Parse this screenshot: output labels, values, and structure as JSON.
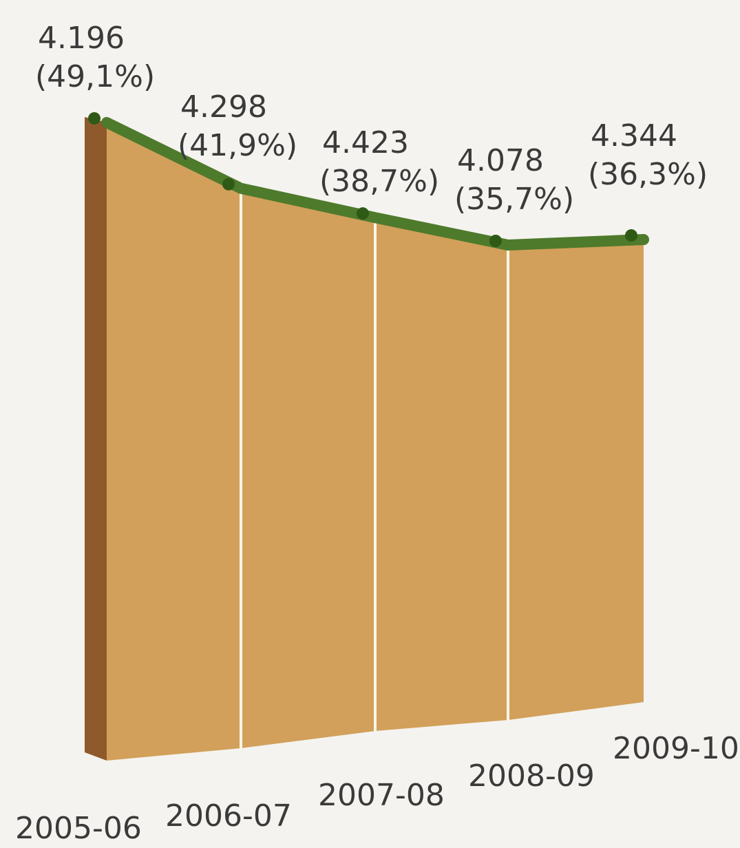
{
  "chart_data": {
    "type": "area",
    "categories": [
      "2005-06",
      "2006-07",
      "2007-08",
      "2008-09",
      "2009-10"
    ],
    "values": [
      49.1,
      41.9,
      38.7,
      35.7,
      36.3
    ],
    "series": [
      {
        "values": [
          4196,
          4298,
          4423,
          4078,
          4344
        ]
      },
      {
        "values": [
          49.1,
          41.9,
          38.7,
          35.7,
          36.3
        ]
      }
    ],
    "value_labels": [
      "4.196",
      "4.298",
      "4.423",
      "4.078",
      "4.344"
    ],
    "percent_labels": [
      "(49,1%)",
      "(41,9%)",
      "(38,7%)",
      "(35,7%)",
      "(36,3%)"
    ],
    "title": "",
    "xlabel": "",
    "ylabel": "",
    "grid": false,
    "legend": "none",
    "colors": {
      "face": "#d2a05a",
      "side": "#8e5a2c",
      "line": "#4e7a2c",
      "line_dark": "#2f5a16",
      "divider": "#fbf6e6",
      "text": "#3a3a3a"
    }
  }
}
